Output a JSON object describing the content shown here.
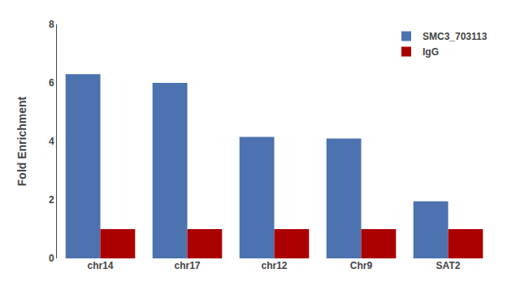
{
  "chart_data": {
    "type": "bar",
    "categories": [
      "chr14",
      "chr17",
      "chr12",
      "Chr9",
      "SAT2"
    ],
    "series": [
      {
        "name": "SMC3_703113",
        "color": "#4C72B0",
        "values": [
          6.3,
          6.0,
          4.15,
          4.1,
          1.95
        ]
      },
      {
        "name": "IgG",
        "color": "#AA0000",
        "values": [
          1.0,
          1.0,
          1.0,
          1.0,
          1.0
        ]
      }
    ],
    "ylabel": "Fold Enrichment",
    "ylim": [
      0,
      8
    ],
    "yticks": [
      0,
      2,
      4,
      6,
      8
    ],
    "grid": false,
    "legend": "upper right"
  }
}
